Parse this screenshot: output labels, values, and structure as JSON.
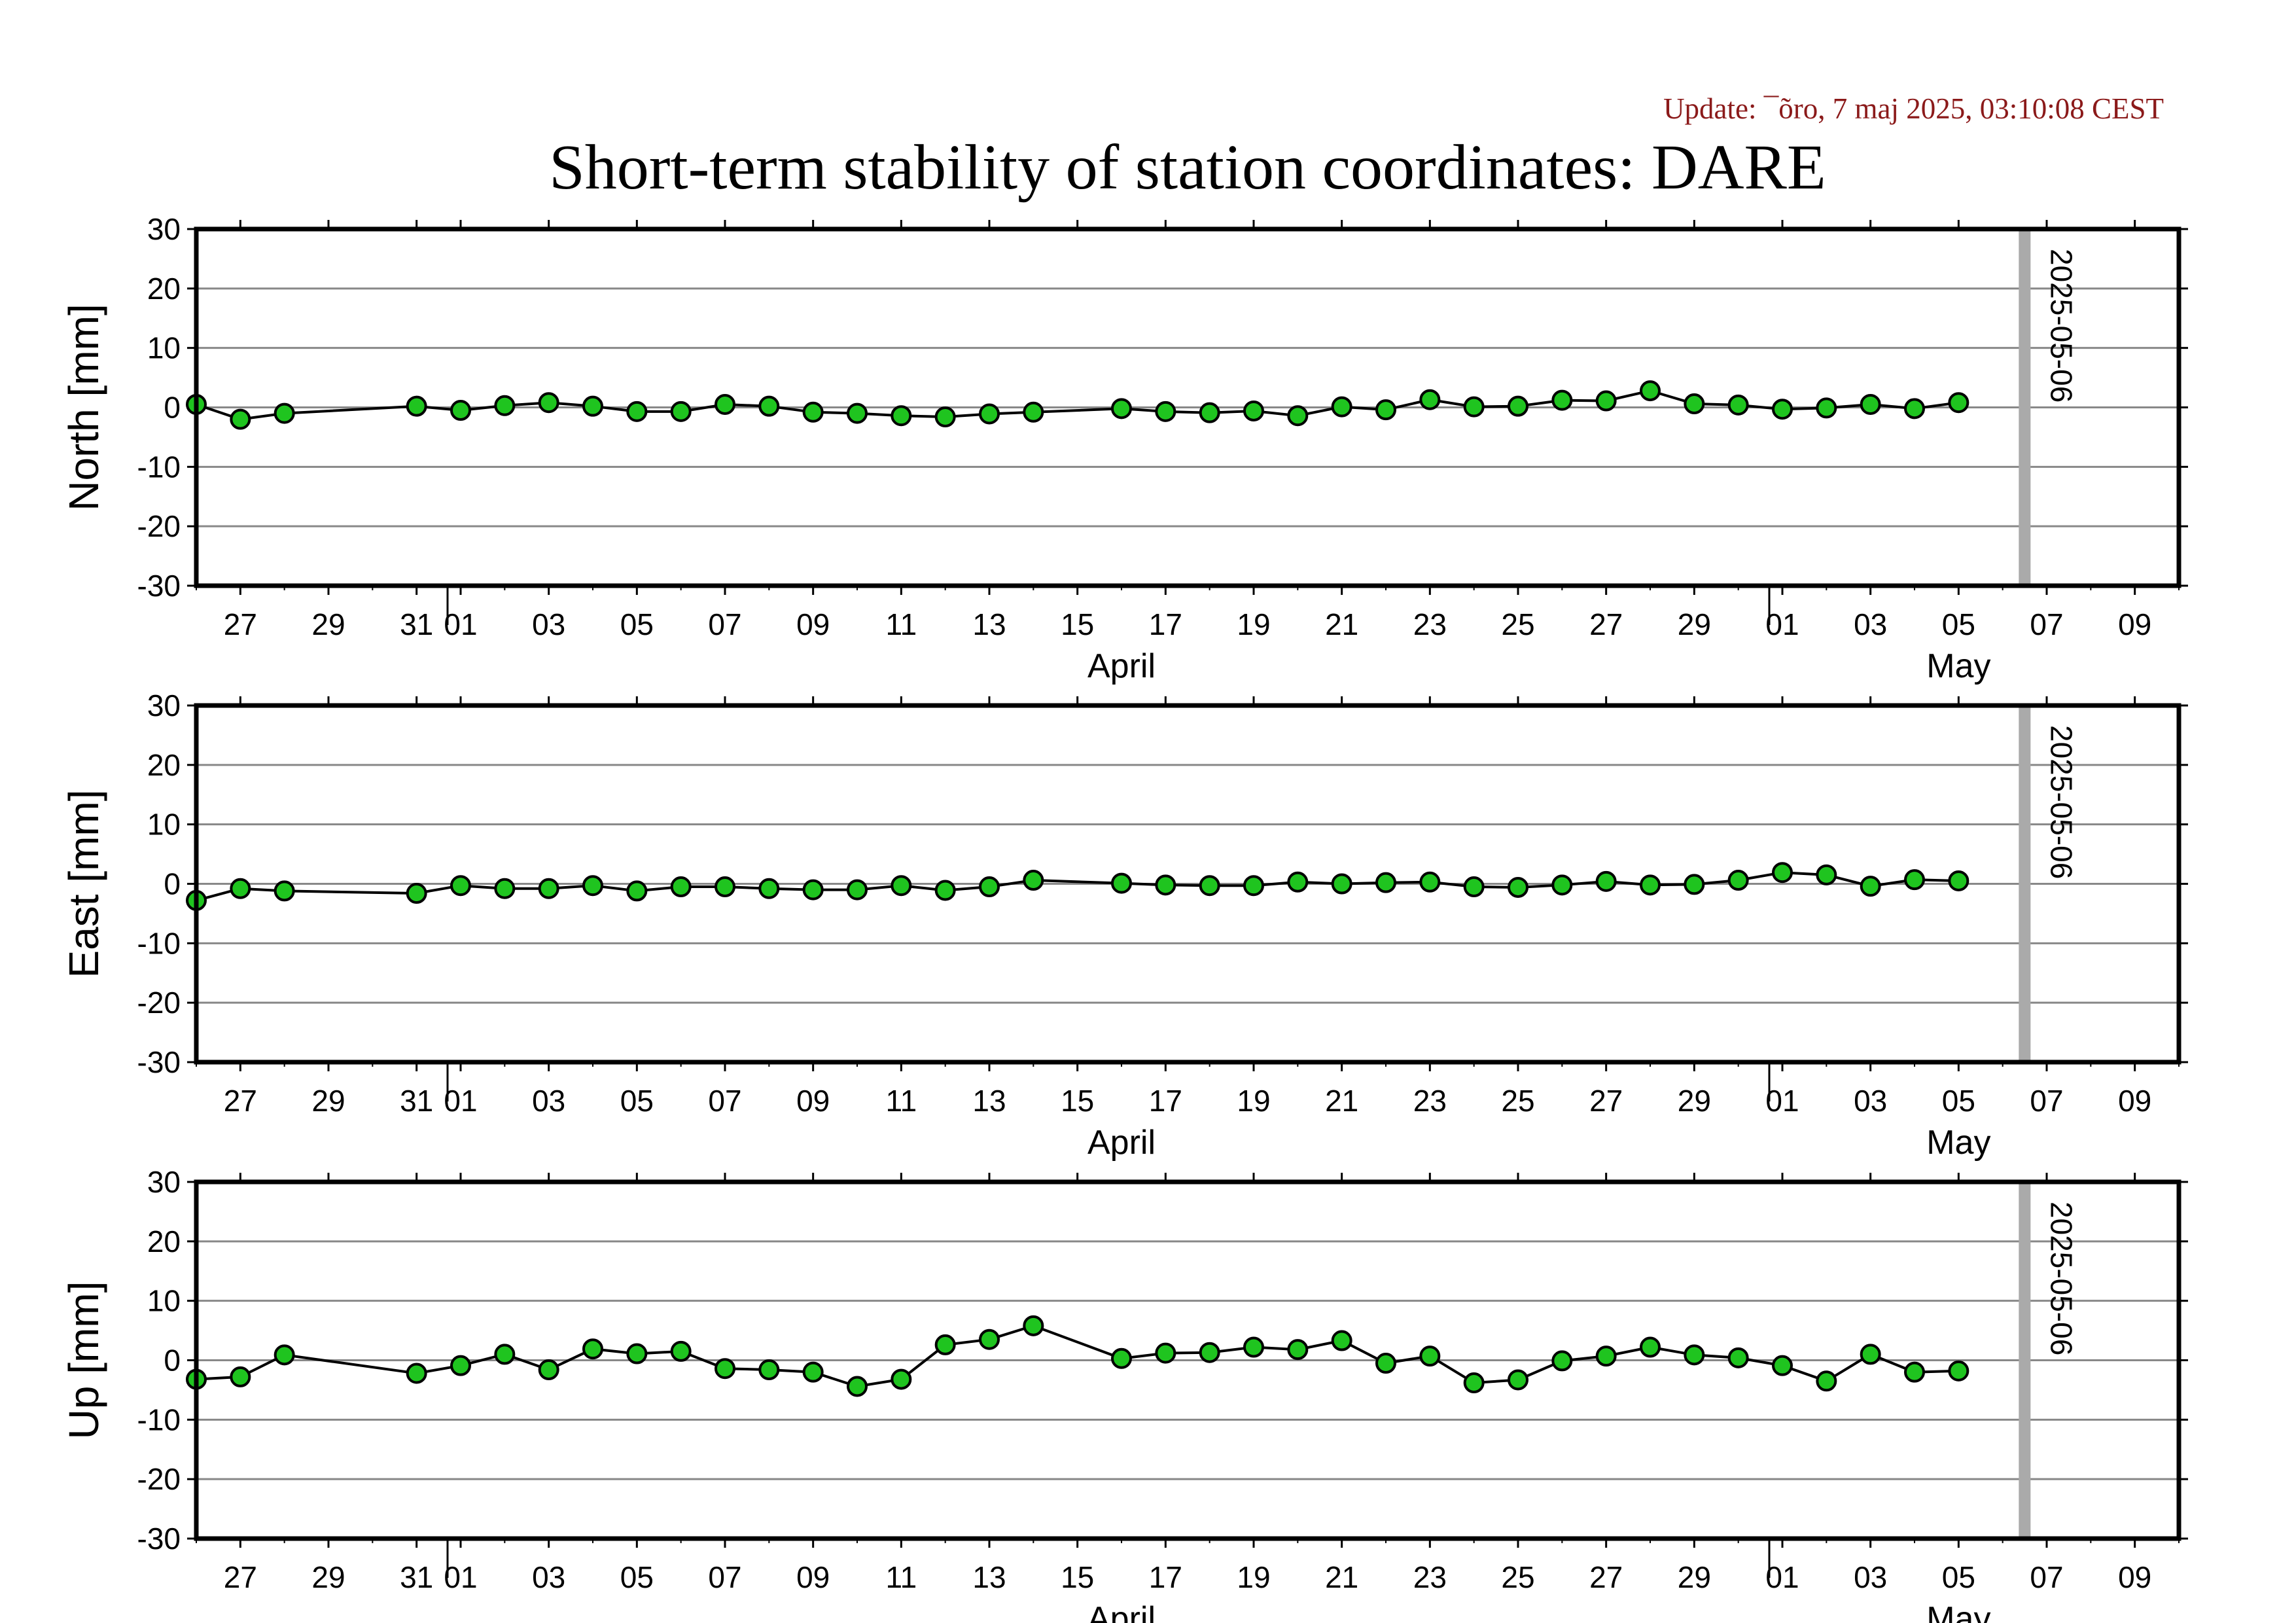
{
  "header": {
    "update_text": "Update: ¯õro, 7 maj 2025, 03:10:08 CEST",
    "title": "Short-term stability of station coordinates: DARE"
  },
  "colors": {
    "marker_fill": "#1fc41f",
    "line": "#000000",
    "grid": "#888888",
    "date_bar": "#aaaaaa",
    "update_text": "#8b1a1a"
  },
  "chart_data": {
    "type": "line",
    "x_axis": {
      "range": [
        "2025-03-26",
        "2025-05-10"
      ],
      "tick_labels": [
        "27",
        "29",
        "31",
        "01",
        "03",
        "05",
        "07",
        "09",
        "11",
        "13",
        "15",
        "17",
        "19",
        "21",
        "23",
        "25",
        "27",
        "29",
        "01",
        "03",
        "05",
        "07",
        "09"
      ],
      "tick_dates": [
        "2025-03-27",
        "2025-03-29",
        "2025-03-31",
        "2025-04-01",
        "2025-04-03",
        "2025-04-05",
        "2025-04-07",
        "2025-04-09",
        "2025-04-11",
        "2025-04-13",
        "2025-04-15",
        "2025-04-17",
        "2025-04-19",
        "2025-04-21",
        "2025-04-23",
        "2025-04-25",
        "2025-04-27",
        "2025-04-29",
        "2025-05-01",
        "2025-05-03",
        "2025-05-05",
        "2025-05-07",
        "2025-05-09"
      ],
      "month_labels": [
        {
          "label": "April",
          "date": "2025-04-16"
        },
        {
          "label": "May",
          "date": "2025-05-05"
        }
      ],
      "month_boundaries": [
        "2025-04-01",
        "2025-05-01"
      ]
    },
    "marker_date": {
      "label": "2025-05-06",
      "date": "2025-05-06T12:00"
    },
    "ylim": [
      -30,
      30
    ],
    "y_ticks": [
      30,
      20,
      10,
      0,
      -10,
      -20,
      -30
    ],
    "grid": true,
    "panels": [
      {
        "ylabel": "North [mm]",
        "points": [
          [
            "2025-03-26",
            0.5
          ],
          [
            "2025-03-27",
            -2.0
          ],
          [
            "2025-03-28",
            -1.0
          ],
          [
            "2025-03-31",
            0.2
          ],
          [
            "2025-04-01",
            -0.5
          ],
          [
            "2025-04-02",
            0.3
          ],
          [
            "2025-04-03",
            0.8
          ],
          [
            "2025-04-04",
            0.2
          ],
          [
            "2025-04-05",
            -0.7
          ],
          [
            "2025-04-06",
            -0.7
          ],
          [
            "2025-04-07",
            0.5
          ],
          [
            "2025-04-08",
            0.2
          ],
          [
            "2025-04-09",
            -0.8
          ],
          [
            "2025-04-10",
            -1.0
          ],
          [
            "2025-04-11",
            -1.4
          ],
          [
            "2025-04-12",
            -1.6
          ],
          [
            "2025-04-13",
            -1.1
          ],
          [
            "2025-04-14",
            -0.8
          ],
          [
            "2025-04-16",
            -0.2
          ],
          [
            "2025-04-17",
            -0.7
          ],
          [
            "2025-04-18",
            -0.9
          ],
          [
            "2025-04-19",
            -0.6
          ],
          [
            "2025-04-20",
            -1.4
          ],
          [
            "2025-04-21",
            0.1
          ],
          [
            "2025-04-22",
            -0.4
          ],
          [
            "2025-04-23",
            1.3
          ],
          [
            "2025-04-24",
            0.1
          ],
          [
            "2025-04-25",
            0.2
          ],
          [
            "2025-04-26",
            1.2
          ],
          [
            "2025-04-27",
            1.1
          ],
          [
            "2025-04-28",
            2.8
          ],
          [
            "2025-04-29",
            0.6
          ],
          [
            "2025-04-30",
            0.4
          ],
          [
            "2025-05-01",
            -0.3
          ],
          [
            "2025-05-02",
            -0.1
          ],
          [
            "2025-05-03",
            0.5
          ],
          [
            "2025-05-04",
            -0.2
          ],
          [
            "2025-05-05",
            0.8
          ]
        ]
      },
      {
        "ylabel": "East [mm]",
        "points": [
          [
            "2025-03-26",
            -2.8
          ],
          [
            "2025-03-27",
            -0.8
          ],
          [
            "2025-03-28",
            -1.2
          ],
          [
            "2025-03-31",
            -1.6
          ],
          [
            "2025-04-01",
            -0.3
          ],
          [
            "2025-04-02",
            -0.8
          ],
          [
            "2025-04-03",
            -0.8
          ],
          [
            "2025-04-04",
            -0.3
          ],
          [
            "2025-04-05",
            -1.2
          ],
          [
            "2025-04-06",
            -0.5
          ],
          [
            "2025-04-07",
            -0.5
          ],
          [
            "2025-04-08",
            -0.8
          ],
          [
            "2025-04-09",
            -1.0
          ],
          [
            "2025-04-10",
            -1.0
          ],
          [
            "2025-04-11",
            -0.3
          ],
          [
            "2025-04-12",
            -1.1
          ],
          [
            "2025-04-13",
            -0.5
          ],
          [
            "2025-04-14",
            0.6
          ],
          [
            "2025-04-16",
            0.1
          ],
          [
            "2025-04-17",
            -0.2
          ],
          [
            "2025-04-18",
            -0.3
          ],
          [
            "2025-04-19",
            -0.3
          ],
          [
            "2025-04-20",
            0.3
          ],
          [
            "2025-04-21",
            0.0
          ],
          [
            "2025-04-22",
            0.2
          ],
          [
            "2025-04-23",
            0.3
          ],
          [
            "2025-04-24",
            -0.5
          ],
          [
            "2025-04-25",
            -0.6
          ],
          [
            "2025-04-26",
            -0.2
          ],
          [
            "2025-04-27",
            0.4
          ],
          [
            "2025-04-28",
            -0.2
          ],
          [
            "2025-04-29",
            -0.1
          ],
          [
            "2025-04-30",
            0.6
          ],
          [
            "2025-05-01",
            1.9
          ],
          [
            "2025-05-02",
            1.5
          ],
          [
            "2025-05-03",
            -0.4
          ],
          [
            "2025-05-04",
            0.7
          ],
          [
            "2025-05-05",
            0.5
          ]
        ]
      },
      {
        "ylabel": "Up [mm]",
        "points": [
          [
            "2025-03-26",
            -3.2
          ],
          [
            "2025-03-27",
            -2.8
          ],
          [
            "2025-03-28",
            0.9
          ],
          [
            "2025-03-31",
            -2.2
          ],
          [
            "2025-04-01",
            -0.9
          ],
          [
            "2025-04-02",
            1.0
          ],
          [
            "2025-04-03",
            -1.6
          ],
          [
            "2025-04-04",
            1.9
          ],
          [
            "2025-04-05",
            1.1
          ],
          [
            "2025-04-06",
            1.5
          ],
          [
            "2025-04-07",
            -1.4
          ],
          [
            "2025-04-08",
            -1.6
          ],
          [
            "2025-04-09",
            -2.0
          ],
          [
            "2025-04-10",
            -4.4
          ],
          [
            "2025-04-11",
            -3.2
          ],
          [
            "2025-04-12",
            2.6
          ],
          [
            "2025-04-13",
            3.5
          ],
          [
            "2025-04-14",
            5.8
          ],
          [
            "2025-04-16",
            0.3
          ],
          [
            "2025-04-17",
            1.2
          ],
          [
            "2025-04-18",
            1.3
          ],
          [
            "2025-04-19",
            2.2
          ],
          [
            "2025-04-20",
            1.8
          ],
          [
            "2025-04-21",
            3.3
          ],
          [
            "2025-04-22",
            -0.5
          ],
          [
            "2025-04-23",
            0.7
          ],
          [
            "2025-04-24",
            -3.8
          ],
          [
            "2025-04-25",
            -3.3
          ],
          [
            "2025-04-26",
            -0.1
          ],
          [
            "2025-04-27",
            0.7
          ],
          [
            "2025-04-28",
            2.2
          ],
          [
            "2025-04-29",
            0.9
          ],
          [
            "2025-04-30",
            0.4
          ],
          [
            "2025-05-01",
            -0.9
          ],
          [
            "2025-05-02",
            -3.5
          ],
          [
            "2025-05-03",
            1.0
          ],
          [
            "2025-05-04",
            -2.0
          ],
          [
            "2025-05-05",
            -1.8
          ]
        ]
      }
    ]
  }
}
